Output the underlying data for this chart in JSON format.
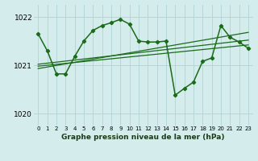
{
  "title": "Graphe pression niveau de la mer (hPa)",
  "bg_color": "#d4ecec",
  "grid_color": "#afd4d4",
  "line_color": "#1a6b1a",
  "ylim": [
    1019.75,
    1022.25
  ],
  "yticks": [
    1020,
    1021,
    1022
  ],
  "xlim": [
    -0.5,
    23.5
  ],
  "xticks": [
    0,
    1,
    2,
    3,
    4,
    5,
    6,
    7,
    8,
    9,
    10,
    11,
    12,
    13,
    14,
    15,
    16,
    17,
    18,
    19,
    20,
    21,
    22,
    23
  ],
  "main_x": [
    0,
    1,
    2,
    3,
    4,
    5,
    6,
    7,
    8,
    9,
    10,
    11,
    12,
    13,
    14,
    15,
    16,
    17,
    18,
    19,
    20,
    21,
    22,
    23
  ],
  "main_y": [
    1021.65,
    1021.3,
    1020.82,
    1020.82,
    1021.18,
    1021.5,
    1021.72,
    1021.82,
    1021.88,
    1021.95,
    1021.85,
    1021.5,
    1021.48,
    1021.48,
    1021.5,
    1020.38,
    1020.52,
    1020.65,
    1021.08,
    1021.15,
    1021.82,
    1021.58,
    1021.48,
    1021.35
  ],
  "trend1_x0": 0,
  "trend1_y0": 1021.02,
  "trend1_x1": 23,
  "trend1_y1": 1021.52,
  "trend2_x0": 0,
  "trend2_y0": 1020.98,
  "trend2_x1": 23,
  "trend2_y1": 1021.42,
  "trend3_x0": 0,
  "trend3_y0": 1020.93,
  "trend3_x1": 23,
  "trend3_y1": 1021.68,
  "ylabel_fontsize": 6.5,
  "xlabel_fontsize": 5.5,
  "title_fontsize": 6.5
}
